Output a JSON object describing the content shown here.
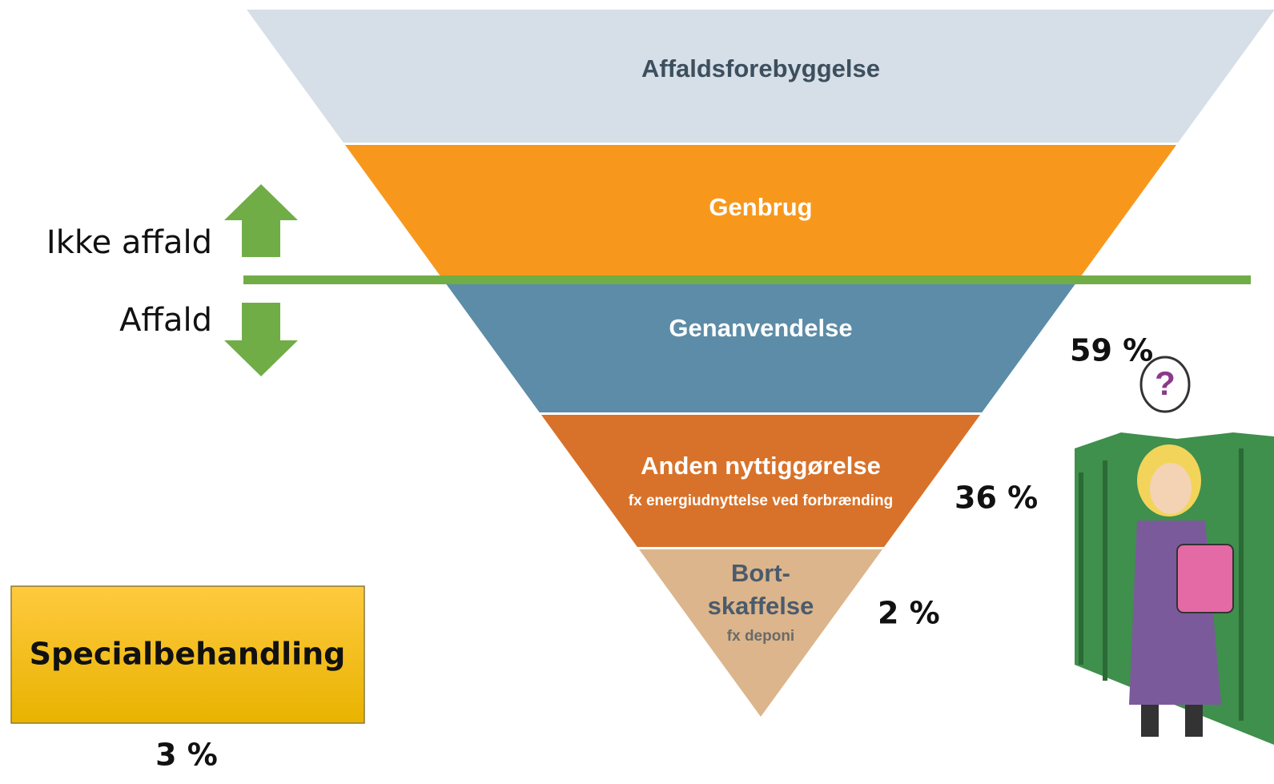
{
  "levels": [
    {
      "lines": [
        "Affaldsforebyggelse"
      ]
    },
    {
      "lines": [
        "Genbrug"
      ]
    },
    {
      "lines": [
        "Genanvendelse"
      ]
    },
    {
      "lines": [
        "Anden nyttiggørelse"
      ],
      "note": "fx energiudnyttelse ved forbrænding"
    },
    {
      "lines": [
        "Bort-",
        "skaffelse"
      ],
      "note": "fx deponi"
    }
  ],
  "divider": {
    "above": "Ikke affald",
    "below": "Affald"
  },
  "shares": {
    "genanvendelse": "59 %",
    "anden_nyttiggorelse": "36 %",
    "bortskaffelse": "2 %"
  },
  "special": {
    "label": "Specialbehandling",
    "share": "3 %"
  }
}
